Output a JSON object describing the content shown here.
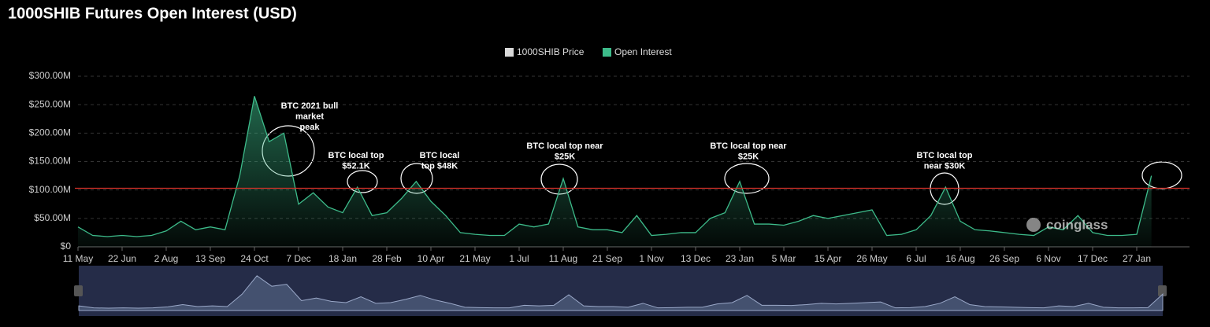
{
  "chart_data": {
    "type": "area",
    "title": "1000SHIB Futures Open Interest (USD)",
    "legend": [
      {
        "name": "1000SHIB Price",
        "color": "#d9d9d9"
      },
      {
        "name": "Open Interest",
        "color": "#3dbb8a"
      }
    ],
    "categories": [
      "11 May",
      null,
      null,
      "22 Jun",
      null,
      null,
      "2 Aug",
      null,
      null,
      "13 Sep",
      null,
      null,
      "24 Oct",
      null,
      null,
      "7 Dec",
      null,
      null,
      "18 Jan",
      null,
      null,
      "28 Feb",
      null,
      null,
      "10 Apr",
      null,
      null,
      "21 May",
      null,
      null,
      "1 Jul",
      null,
      null,
      "11 Aug",
      null,
      null,
      "21 Sep",
      null,
      null,
      "1 Nov",
      null,
      null,
      "13 Dec",
      null,
      null,
      "23 Jan",
      null,
      null,
      "5 Mar",
      null,
      null,
      "15 Apr",
      null,
      null,
      "26 May",
      null,
      null,
      "6 Jul",
      null,
      null,
      "16 Aug",
      null,
      null,
      "26 Sep",
      null,
      null,
      "6 Nov",
      null,
      null,
      "17 Dec",
      null,
      null,
      "27 Jan",
      null
    ],
    "series": [
      {
        "name": "Open Interest",
        "color": "#3dbb8a",
        "values": [
          35,
          20,
          18,
          20,
          18,
          20,
          28,
          45,
          30,
          35,
          30,
          125,
          265,
          185,
          200,
          75,
          95,
          70,
          60,
          105,
          55,
          60,
          85,
          115,
          80,
          55,
          25,
          22,
          20,
          20,
          40,
          35,
          40,
          120,
          35,
          30,
          30,
          25,
          55,
          20,
          22,
          25,
          25,
          50,
          60,
          115,
          40,
          40,
          38,
          45,
          55,
          50,
          55,
          60,
          65,
          20,
          22,
          30,
          55,
          105,
          45,
          30,
          28,
          25,
          22,
          20,
          35,
          30,
          55,
          25,
          20,
          20,
          22,
          125
        ]
      }
    ],
    "ylim": [
      0,
      300
    ],
    "yticks": [
      {
        "value": 0,
        "label": "$0"
      },
      {
        "value": 50,
        "label": "$50.00M"
      },
      {
        "value": 100,
        "label": "$100.00M"
      },
      {
        "value": 150,
        "label": "$150.00M"
      },
      {
        "value": 200,
        "label": "$200.00M"
      },
      {
        "value": 250,
        "label": "$250.00M"
      },
      {
        "value": 300,
        "label": "$300.00M"
      }
    ],
    "grid": true,
    "reference_line": {
      "value": 103,
      "color": "#d9342b"
    },
    "annotations": [
      {
        "lines": [
          "BTC 2021 bull",
          "market",
          "peak"
        ]
      },
      {
        "lines": [
          "BTC local top",
          "$52.1K"
        ]
      },
      {
        "lines": [
          "BTC local",
          "top $48K"
        ]
      },
      {
        "lines": [
          "BTC local top near",
          "$25K"
        ]
      },
      {
        "lines": [
          "BTC local top near",
          "$25K"
        ]
      },
      {
        "lines": [
          "BTC local top",
          "near $30K"
        ]
      }
    ],
    "watermark": "coinglass"
  }
}
